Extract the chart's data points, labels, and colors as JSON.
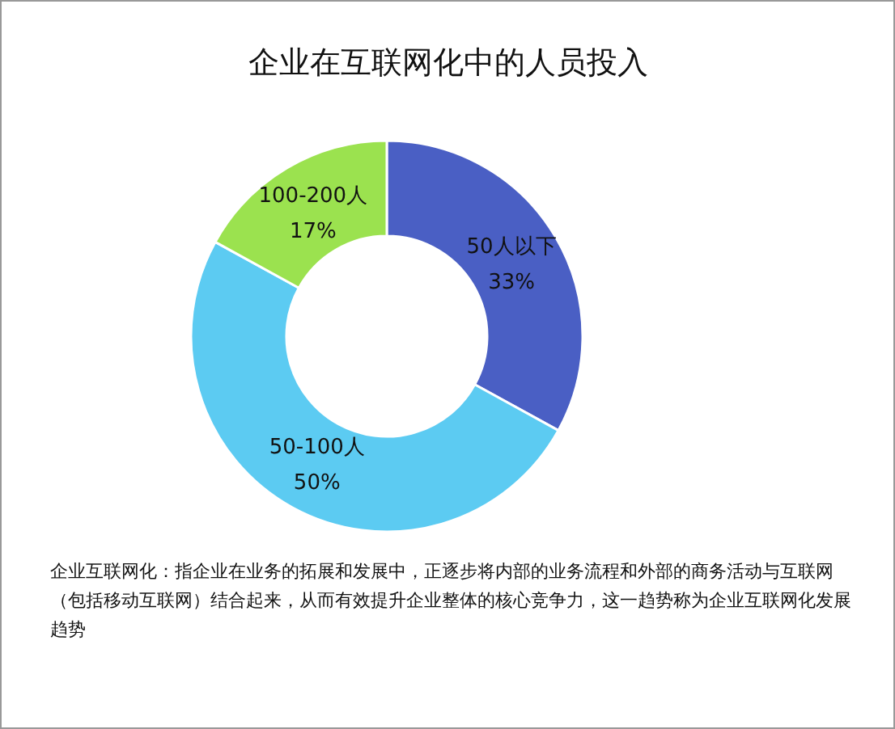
{
  "chart_data": {
    "type": "donut",
    "title": "企业在互联网化中的人员投入",
    "categories": [
      "50人以下",
      "50-100人",
      "100-200人"
    ],
    "values": [
      33,
      50,
      17
    ],
    "value_labels": [
      "33%",
      "50%",
      "17%"
    ],
    "colors": [
      "#4a5fc4",
      "#5ccbf2",
      "#9be24f"
    ],
    "legend": false,
    "annotations": [
      "企业互联网化：指企业在业务的拓展和发展中，正逐步将内部的业务流程和外部的商务活动与互联网（包括移动互联网）结合起来，从而有效提升企业整体的核心竞争力，这一趋势称为企业互联网化发展趋势"
    ]
  }
}
